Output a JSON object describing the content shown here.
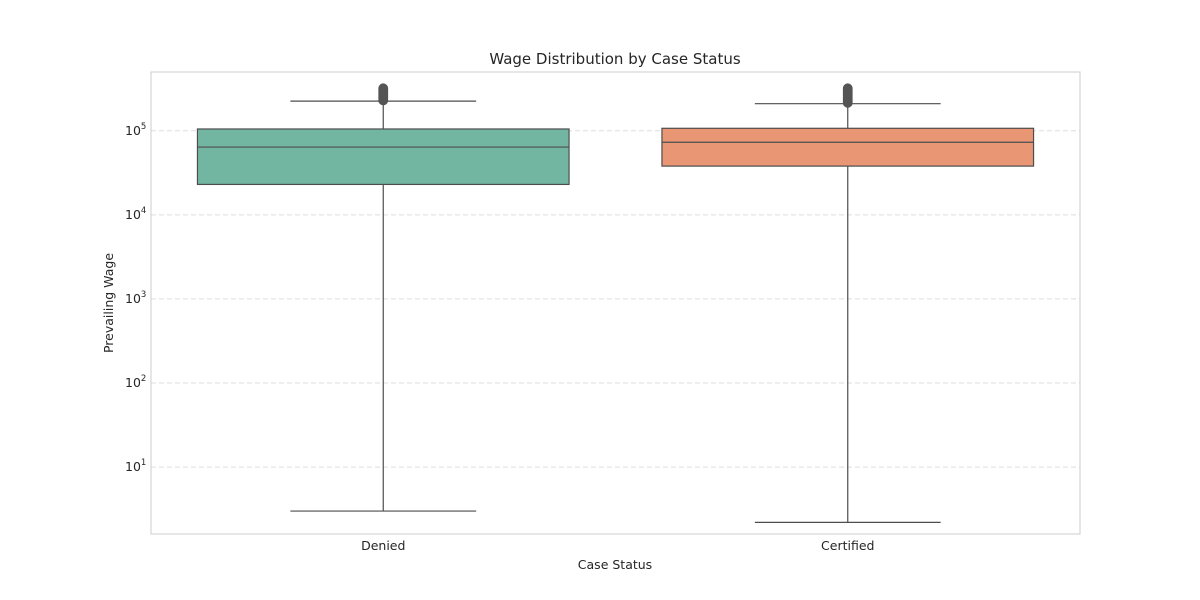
{
  "chart_data": {
    "type": "boxplot",
    "title": "Wage Distribution by Case Status",
    "xlabel": "Case Status",
    "ylabel": "Prevailing Wage",
    "yscale": "log",
    "ylim": [
      1.6,
      500000
    ],
    "grid": "y-dashed",
    "categories": [
      "Denied",
      "Certified"
    ],
    "y_ticks": [
      {
        "base": "10",
        "exp": "1",
        "value": 10
      },
      {
        "base": "10",
        "exp": "2",
        "value": 100
      },
      {
        "base": "10",
        "exp": "3",
        "value": 1000
      },
      {
        "base": "10",
        "exp": "4",
        "value": 10000
      },
      {
        "base": "10",
        "exp": "5",
        "value": 100000
      }
    ],
    "boxes": [
      {
        "category": "Denied",
        "color": "#72b6a1",
        "whisker_low": 3,
        "q1": 23000,
        "median": 64000,
        "q3": 105000,
        "whisker_high": 225000,
        "outliers_range": [
          230000,
          320000
        ]
      },
      {
        "category": "Certified",
        "color": "#e99675",
        "whisker_low": 2.2,
        "q1": 38000,
        "median": 73000,
        "q3": 107000,
        "whisker_high": 210000,
        "outliers_range": [
          215000,
          320000
        ]
      }
    ]
  },
  "colors": {
    "frame": "#cccccc",
    "grid": "#dddddd",
    "line": "#4d4d4d",
    "outlier": "#555555"
  }
}
